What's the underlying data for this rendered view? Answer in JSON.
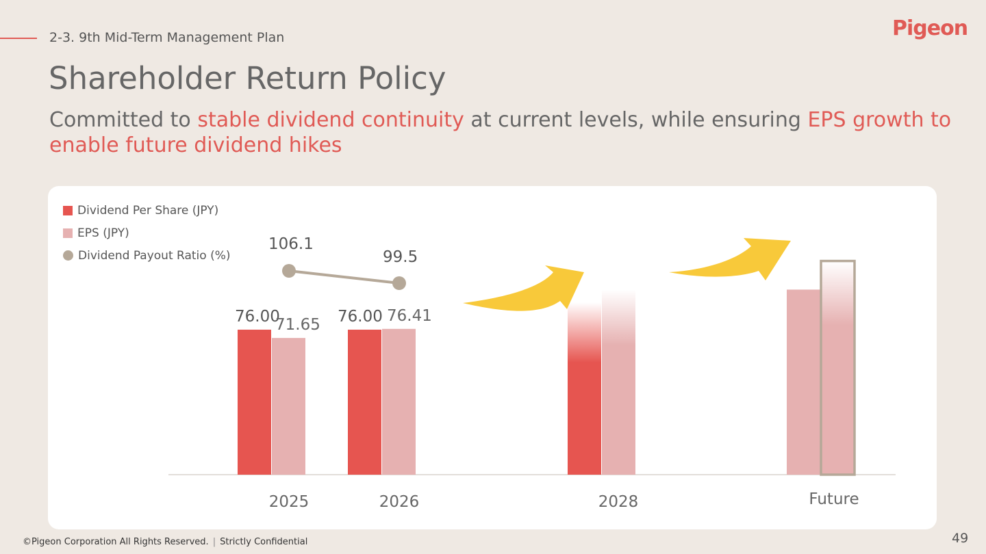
{
  "header": {
    "section_label": "2-3. 9th Mid-Term Management Plan",
    "logo_text": "pigeon",
    "title": "Shareholder Return Policy",
    "subtitle_parts": [
      {
        "text": "Committed to ",
        "highlight": false
      },
      {
        "text": "stable dividend continuity",
        "highlight": true
      },
      {
        "text": " at current levels, while ensuring ",
        "highlight": false
      },
      {
        "text": "EPS growth to enable future dividend hikes",
        "highlight": true
      }
    ]
  },
  "colors": {
    "accent": "#e05a55",
    "dps": "#e65550",
    "eps": "#e6b1b1",
    "payout": "#b5a898",
    "arrow": "#f8c93a",
    "background": "#efe9e3",
    "card": "#ffffff"
  },
  "chart_data": {
    "type": "bar",
    "categories": [
      "2025",
      "2026",
      "2028",
      "Future"
    ],
    "series": [
      {
        "name": "Dividend Per Share (JPY)",
        "values": [
          76.0,
          76.0,
          null,
          null
        ],
        "labels": [
          "76.00",
          "76.00",
          "",
          ""
        ]
      },
      {
        "name": "EPS (JPY)",
        "values": [
          71.65,
          76.41,
          null,
          null
        ],
        "labels": [
          "71.65",
          "76.41",
          "",
          ""
        ]
      },
      {
        "name": "Dividend Payout Ratio (%)",
        "type": "line",
        "values": [
          106.1,
          99.5,
          null,
          null
        ],
        "labels": [
          "106.1",
          "99.5",
          "",
          ""
        ]
      }
    ],
    "illustrative": {
      "2028": {
        "dps": 76.0,
        "eps": 97.0
      },
      "Future": {
        "eps": 97.0,
        "target_eps": 112.0
      }
    },
    "ylim": [
      0,
      115
    ],
    "legend_position": "top-left"
  },
  "footer": {
    "copyright": "©Pigeon Corporation All Rights Reserved.",
    "separator": "|",
    "confidential": "Strictly Confidential",
    "page_number": "49"
  }
}
